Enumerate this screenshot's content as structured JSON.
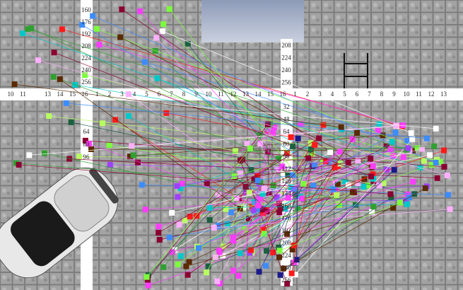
{
  "top_left_column": [
    "160",
    "176",
    "192",
    "208",
    "224",
    "240",
    "256"
  ],
  "top_right_column": [
    "208",
    "224",
    "240",
    "256"
  ],
  "middle_row": [
    "10",
    "11",
    "13",
    "14",
    "15",
    "16",
    "1",
    "2",
    "3",
    "4",
    "5",
    "6",
    "7",
    "8",
    "9",
    "10",
    "11",
    "12",
    "13",
    "14",
    "15",
    "16",
    "1",
    "2",
    "3",
    "4",
    "5",
    "6",
    "7",
    "8",
    "9",
    "10",
    "11",
    "12",
    "13"
  ],
  "lower_left_column": [
    "64",
    "80",
    "96"
  ],
  "lower_right_column": [
    "32",
    "48",
    "64",
    "80",
    "96",
    "112",
    "128",
    "144",
    "160",
    "176",
    "192",
    "208",
    "224",
    "240",
    "256"
  ]
}
